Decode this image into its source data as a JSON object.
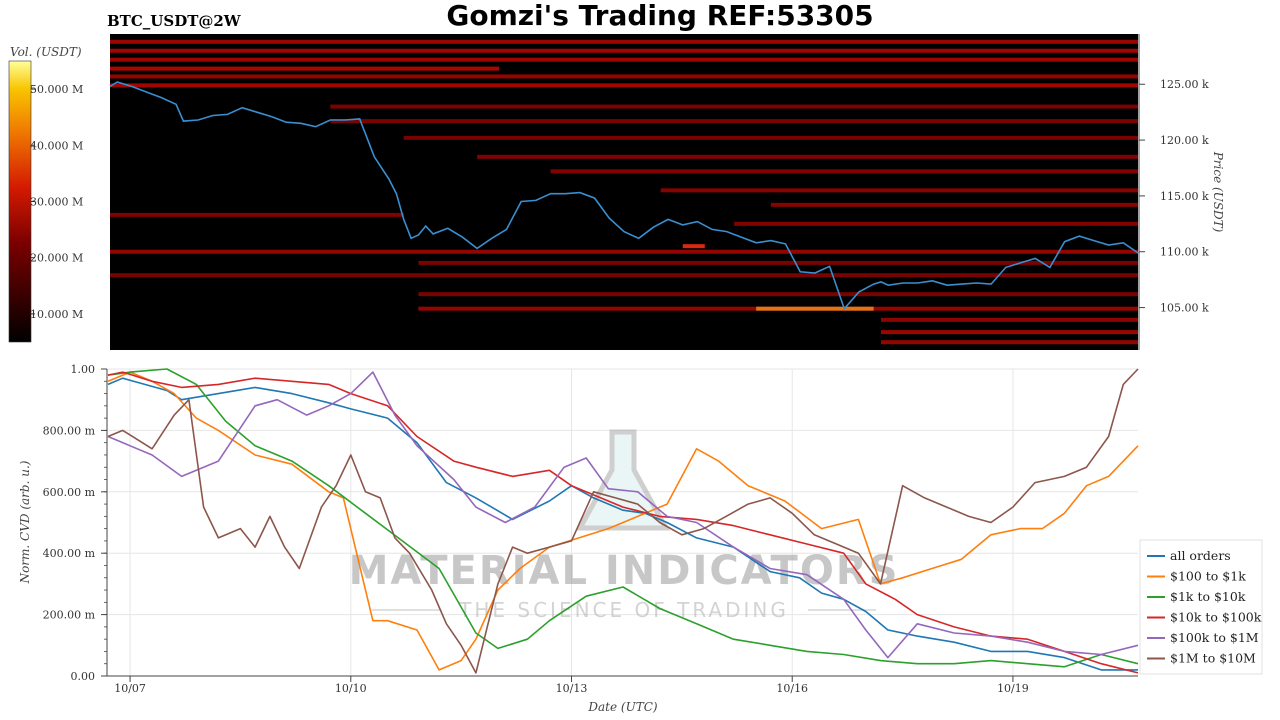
{
  "header": {
    "pair": "BTC_USDT@2W",
    "title": "Gomzi's Trading REF:53305"
  },
  "watermark": {
    "brand": "MATERIAL INDICATORS",
    "tagline": "THE SCIENCE OF TRADING"
  },
  "colors": {
    "all_orders": "#1f77b4",
    "r100_1k": "#ff7f0e",
    "r1k_10k": "#2ca02c",
    "r10k_100k": "#d62728",
    "r100k_1m": "#9467bd",
    "r1m_10m": "#8c564b",
    "heatmap_background": "#000000",
    "price_line": "#3a8fd0"
  },
  "chart_data": [
    {
      "type": "heatmap",
      "description_role": "order book liquidity heatmap with price overlay",
      "colorbar_label": "Vol. (USDT)",
      "colorbar_ticks": [
        "10.000 M",
        "20.000 M",
        "30.000 M",
        "40.000 M",
        "50.000 M"
      ],
      "colorbar_range": [
        5,
        55
      ],
      "ylabel": "Price (USDT)",
      "y_ticks": [
        "105.00 k",
        "110.00 k",
        "115.00 k",
        "120.00 k",
        "125.00 k"
      ],
      "y_tick_values": [
        105000,
        110000,
        115000,
        120000,
        125000
      ],
      "ylim": [
        101200,
        129500
      ],
      "xlim": [
        0,
        14
      ],
      "liquidity_bands": [
        {
          "price": 128800,
          "t0": 0,
          "t1": 14,
          "level": 0.55
        },
        {
          "price": 128000,
          "t0": 0,
          "t1": 14,
          "level": 0.6
        },
        {
          "price": 127200,
          "t0": 0,
          "t1": 14,
          "level": 0.55
        },
        {
          "price": 126400,
          "t0": 0,
          "t1": 5.3,
          "level": 0.65
        },
        {
          "price": 125700,
          "t0": 0,
          "t1": 14,
          "level": 0.5
        },
        {
          "price": 124900,
          "t0": 0,
          "t1": 14,
          "level": 0.6
        },
        {
          "price": 123000,
          "t0": 3.0,
          "t1": 14,
          "level": 0.3
        },
        {
          "price": 121700,
          "t0": 3.0,
          "t1": 14,
          "level": 0.3
        },
        {
          "price": 120200,
          "t0": 4.0,
          "t1": 14,
          "level": 0.3
        },
        {
          "price": 118500,
          "t0": 5.0,
          "t1": 14,
          "level": 0.35
        },
        {
          "price": 117200,
          "t0": 6.0,
          "t1": 14,
          "level": 0.35
        },
        {
          "price": 115500,
          "t0": 7.5,
          "t1": 14,
          "level": 0.4
        },
        {
          "price": 114200,
          "t0": 9.0,
          "t1": 14,
          "level": 0.4
        },
        {
          "price": 113300,
          "t0": 0,
          "t1": 4.0,
          "level": 0.35
        },
        {
          "price": 112500,
          "t0": 8.5,
          "t1": 14,
          "level": 0.35
        },
        {
          "price": 110000,
          "t0": 0,
          "t1": 14,
          "level": 0.5
        },
        {
          "price": 109000,
          "t0": 4.2,
          "t1": 14,
          "level": 0.3
        },
        {
          "price": 107900,
          "t0": 0,
          "t1": 14,
          "level": 0.3
        },
        {
          "price": 106200,
          "t0": 4.2,
          "t1": 14,
          "level": 0.3
        },
        {
          "price": 104900,
          "t0": 4.2,
          "t1": 14,
          "level": 0.5
        },
        {
          "price": 104900,
          "t0": 8.8,
          "t1": 10.4,
          "level": 0.95
        },
        {
          "price": 110500,
          "t0": 7.8,
          "t1": 8.1,
          "level": 0.85
        },
        {
          "price": 103900,
          "t0": 10.5,
          "t1": 14,
          "level": 0.45
        },
        {
          "price": 102800,
          "t0": 10.5,
          "t1": 14,
          "level": 0.55
        },
        {
          "price": 101900,
          "t0": 10.5,
          "t1": 14,
          "level": 0.5
        }
      ],
      "price_series": {
        "name": "",
        "t": [
          0.0,
          0.1,
          0.3,
          0.5,
          0.7,
          0.9,
          1.0,
          1.2,
          1.4,
          1.6,
          1.8,
          2.0,
          2.2,
          2.4,
          2.6,
          2.8,
          3.0,
          3.2,
          3.4,
          3.6,
          3.8,
          3.9,
          4.0,
          4.1,
          4.2,
          4.3,
          4.4,
          4.6,
          4.8,
          5.0,
          5.2,
          5.4,
          5.6,
          5.8,
          6.0,
          6.2,
          6.4,
          6.6,
          6.8,
          7.0,
          7.2,
          7.4,
          7.6,
          7.8,
          8.0,
          8.2,
          8.4,
          8.6,
          8.8,
          9.0,
          9.2,
          9.4,
          9.6,
          9.8,
          10.0,
          10.2,
          10.4,
          10.5,
          10.6,
          10.8,
          11.0,
          11.2,
          11.4,
          11.6,
          11.8,
          12.0,
          12.2,
          12.4,
          12.6,
          12.8,
          13.0,
          13.2,
          13.4,
          13.6,
          13.8,
          14.0
        ],
        "price": [
          124800,
          125200,
          124800,
          124300,
          123800,
          123200,
          121700,
          121800,
          122200,
          122300,
          122900,
          122500,
          122100,
          121600,
          121500,
          121200,
          121800,
          121800,
          121900,
          118500,
          116500,
          115200,
          112900,
          111200,
          111500,
          112300,
          111600,
          112100,
          111300,
          110300,
          111200,
          112000,
          114500,
          114600,
          115200,
          115200,
          115300,
          114800,
          113000,
          111800,
          111200,
          112200,
          112900,
          112400,
          112700,
          112000,
          111800,
          111300,
          110800,
          111000,
          110700,
          108200,
          108100,
          108700,
          104900,
          106400,
          107100,
          107300,
          107000,
          107200,
          107200,
          107400,
          107000,
          107100,
          107200,
          107100,
          108600,
          109000,
          109400,
          108600,
          110900,
          111400,
          111000,
          110600,
          110800,
          109900
        ]
      }
    },
    {
      "type": "line",
      "xlabel": "Date (UTC)",
      "ylabel": "Norm. CVD (arb. u.)",
      "ylim": [
        0,
        1
      ],
      "xlim": [
        0,
        14
      ],
      "y_ticks": [
        "0.00",
        "200.00 m",
        "400.00 m",
        "600.00 m",
        "800.00 m",
        "1.00"
      ],
      "y_tick_values": [
        0,
        0.2,
        0.4,
        0.6,
        0.8,
        1.0
      ],
      "x_ticks": [
        "10/07",
        "10/10",
        "10/13",
        "10/16",
        "10/19"
      ],
      "x_tick_values": [
        0.3,
        3.3,
        6.3,
        9.3,
        12.3
      ],
      "legend_position": "bottom-right",
      "series": [
        {
          "name": "all orders",
          "color_key": "all_orders",
          "x": [
            0,
            0.2,
            0.5,
            0.8,
            1.0,
            1.5,
            2.0,
            2.5,
            3.0,
            3.3,
            3.8,
            4.2,
            4.6,
            5.0,
            5.5,
            6.0,
            6.3,
            6.6,
            7.0,
            7.3,
            7.6,
            8.0,
            8.5,
            9.0,
            9.4,
            9.7,
            10.0,
            10.3,
            10.6,
            11.0,
            11.5,
            12.0,
            12.5,
            13.0,
            13.5,
            14.0
          ],
          "values": [
            0.95,
            0.97,
            0.95,
            0.93,
            0.9,
            0.92,
            0.94,
            0.92,
            0.89,
            0.87,
            0.84,
            0.76,
            0.63,
            0.58,
            0.51,
            0.57,
            0.62,
            0.58,
            0.54,
            0.53,
            0.5,
            0.45,
            0.42,
            0.34,
            0.32,
            0.27,
            0.25,
            0.21,
            0.15,
            0.13,
            0.11,
            0.08,
            0.08,
            0.06,
            0.02,
            0.02
          ]
        },
        {
          "name": "$100 to $1k",
          "color_key": "r100_1k",
          "x": [
            0,
            0.3,
            0.6,
            0.9,
            1.2,
            1.5,
            2.0,
            2.5,
            3.0,
            3.2,
            3.4,
            3.6,
            3.8,
            4.2,
            4.5,
            4.8,
            5.0,
            5.3,
            5.6,
            6.0,
            6.4,
            6.8,
            7.2,
            7.6,
            8.0,
            8.3,
            8.7,
            9.2,
            9.7,
            10.2,
            10.5,
            10.8,
            11.2,
            11.6,
            12.0,
            12.4,
            12.7,
            13.0,
            13.3,
            13.6,
            14.0
          ],
          "values": [
            0.96,
            0.99,
            0.96,
            0.92,
            0.84,
            0.8,
            0.72,
            0.69,
            0.6,
            0.58,
            0.38,
            0.18,
            0.18,
            0.15,
            0.02,
            0.05,
            0.12,
            0.28,
            0.35,
            0.42,
            0.45,
            0.48,
            0.52,
            0.56,
            0.74,
            0.7,
            0.62,
            0.57,
            0.48,
            0.51,
            0.3,
            0.32,
            0.35,
            0.38,
            0.46,
            0.48,
            0.48,
            0.53,
            0.62,
            0.65,
            0.75
          ]
        },
        {
          "name": "$1k to $10k",
          "color_key": "r1k_10k",
          "x": [
            0,
            0.3,
            0.8,
            1.2,
            1.6,
            2.0,
            2.5,
            3.0,
            3.5,
            4.0,
            4.5,
            5.0,
            5.3,
            5.7,
            6.0,
            6.5,
            7.0,
            7.5,
            8.0,
            8.5,
            9.0,
            9.5,
            10.0,
            10.5,
            11.0,
            11.5,
            12.0,
            12.5,
            13.0,
            13.5,
            14.0
          ],
          "values": [
            0.98,
            0.99,
            1.0,
            0.95,
            0.83,
            0.75,
            0.7,
            0.62,
            0.53,
            0.44,
            0.35,
            0.14,
            0.09,
            0.12,
            0.18,
            0.26,
            0.29,
            0.22,
            0.17,
            0.12,
            0.1,
            0.08,
            0.07,
            0.05,
            0.04,
            0.04,
            0.05,
            0.04,
            0.03,
            0.07,
            0.04
          ]
        },
        {
          "name": "$10k to $100k",
          "color_key": "r10k_100k",
          "x": [
            0,
            0.2,
            0.6,
            1.0,
            1.5,
            2.0,
            2.5,
            3.0,
            3.3,
            3.8,
            4.2,
            4.7,
            5.0,
            5.5,
            6.0,
            6.3,
            6.6,
            7.0,
            7.5,
            8.0,
            8.5,
            9.0,
            9.5,
            10.0,
            10.3,
            10.7,
            11.0,
            11.5,
            12.0,
            12.5,
            13.0,
            13.5,
            14.0
          ],
          "values": [
            0.98,
            0.99,
            0.96,
            0.94,
            0.95,
            0.97,
            0.96,
            0.95,
            0.92,
            0.88,
            0.78,
            0.7,
            0.68,
            0.65,
            0.67,
            0.62,
            0.59,
            0.55,
            0.52,
            0.51,
            0.49,
            0.46,
            0.43,
            0.4,
            0.3,
            0.25,
            0.2,
            0.16,
            0.13,
            0.12,
            0.08,
            0.04,
            0.01
          ]
        },
        {
          "name": "$100k to $1M",
          "color_key": "r100k_1m",
          "x": [
            0,
            0.3,
            0.6,
            1.0,
            1.5,
            2.0,
            2.3,
            2.7,
            3.0,
            3.3,
            3.6,
            3.9,
            4.2,
            4.7,
            5.0,
            5.4,
            5.8,
            6.2,
            6.5,
            6.8,
            7.2,
            7.6,
            8.0,
            8.5,
            9.0,
            9.5,
            10.0,
            10.3,
            10.6,
            11.0,
            11.5,
            12.0,
            12.5,
            13.0,
            13.5,
            14.0
          ],
          "values": [
            0.78,
            0.75,
            0.72,
            0.65,
            0.7,
            0.88,
            0.9,
            0.85,
            0.88,
            0.92,
            0.99,
            0.85,
            0.75,
            0.64,
            0.55,
            0.5,
            0.55,
            0.68,
            0.71,
            0.61,
            0.6,
            0.52,
            0.5,
            0.42,
            0.35,
            0.33,
            0.25,
            0.15,
            0.06,
            0.17,
            0.14,
            0.13,
            0.11,
            0.08,
            0.07,
            0.1
          ]
        },
        {
          "name": "$1M to $10M",
          "color_key": "r1m_10m",
          "x": [
            0,
            0.2,
            0.4,
            0.6,
            0.9,
            1.1,
            1.3,
            1.5,
            1.8,
            2.0,
            2.2,
            2.4,
            2.6,
            2.9,
            3.1,
            3.3,
            3.5,
            3.7,
            3.9,
            4.1,
            4.4,
            4.6,
            4.8,
            5.0,
            5.3,
            5.5,
            5.7,
            6.0,
            6.3,
            6.6,
            6.9,
            7.2,
            7.5,
            7.8,
            8.1,
            8.4,
            8.7,
            9.0,
            9.3,
            9.6,
            9.9,
            10.2,
            10.5,
            10.8,
            11.1,
            11.4,
            11.7,
            12.0,
            12.3,
            12.6,
            13.0,
            13.3,
            13.6,
            13.8,
            14.0
          ],
          "values": [
            0.78,
            0.8,
            0.77,
            0.74,
            0.85,
            0.9,
            0.55,
            0.45,
            0.48,
            0.42,
            0.52,
            0.42,
            0.35,
            0.55,
            0.62,
            0.72,
            0.6,
            0.58,
            0.45,
            0.4,
            0.28,
            0.17,
            0.1,
            0.01,
            0.3,
            0.42,
            0.4,
            0.42,
            0.44,
            0.6,
            0.58,
            0.56,
            0.5,
            0.46,
            0.48,
            0.52,
            0.56,
            0.58,
            0.53,
            0.46,
            0.43,
            0.4,
            0.3,
            0.62,
            0.58,
            0.55,
            0.52,
            0.5,
            0.55,
            0.63,
            0.65,
            0.68,
            0.78,
            0.95,
            1.0
          ]
        }
      ]
    }
  ]
}
